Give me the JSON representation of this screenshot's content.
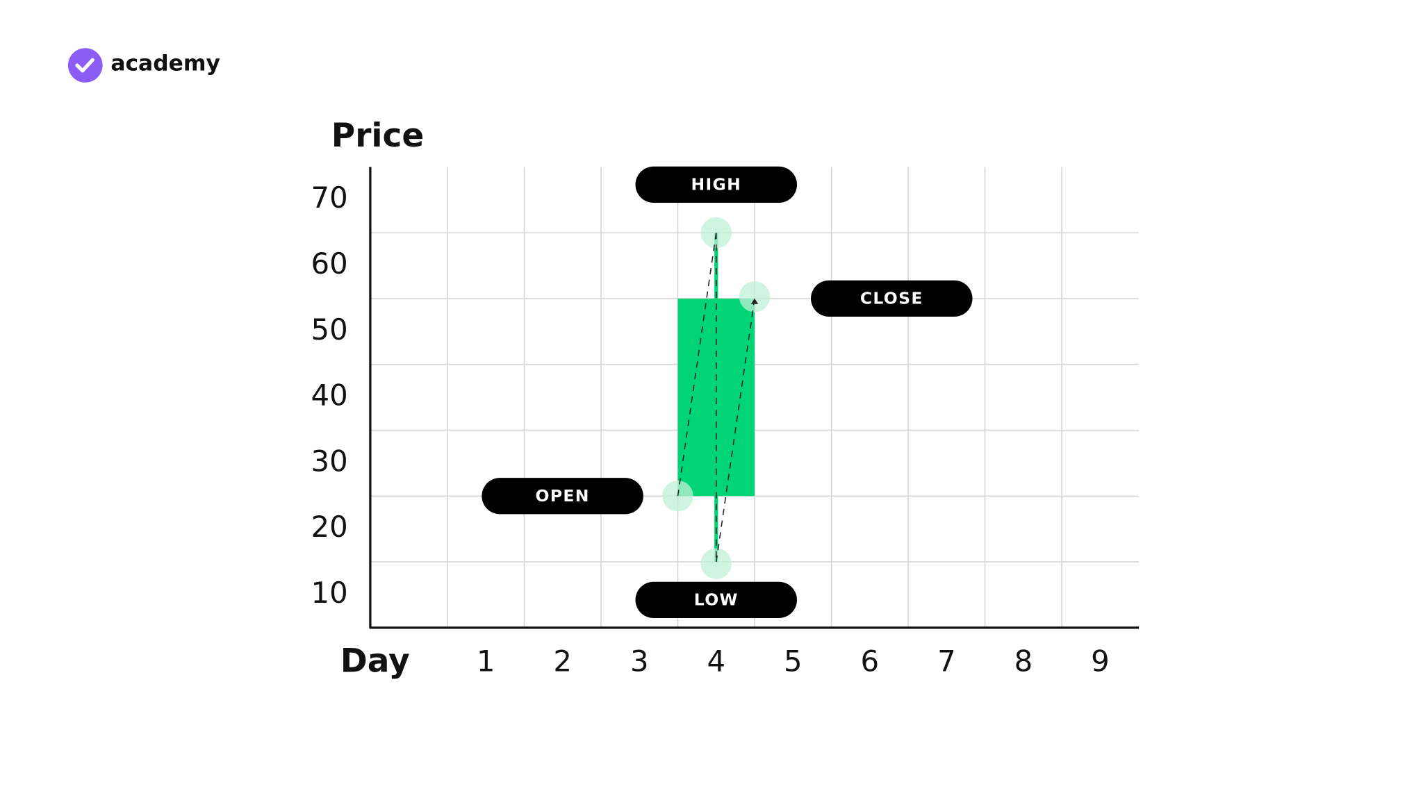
{
  "brand": "academy",
  "chart_data": {
    "type": "candlestick",
    "y_label": "Price",
    "x_label": "Day",
    "categories": [
      "1",
      "2",
      "3",
      "4",
      "5",
      "6",
      "7",
      "8",
      "9"
    ],
    "open": [
      null,
      null,
      null,
      25,
      null,
      null,
      null,
      null,
      null
    ],
    "high": [
      null,
      null,
      null,
      65,
      null,
      null,
      null,
      null,
      null
    ],
    "low": [
      null,
      null,
      null,
      15,
      null,
      null,
      null,
      null,
      null
    ],
    "close": [
      null,
      null,
      null,
      55,
      null,
      null,
      null,
      null,
      null
    ],
    "color": "#00d474",
    "annotations": {
      "open": "OPEN",
      "high": "HIGH",
      "low": "LOW",
      "close": "CLOSE"
    },
    "ylim": [
      5,
      75
    ],
    "yticks": [
      10,
      20,
      30,
      40,
      50,
      60,
      70
    ],
    "grid": true
  }
}
